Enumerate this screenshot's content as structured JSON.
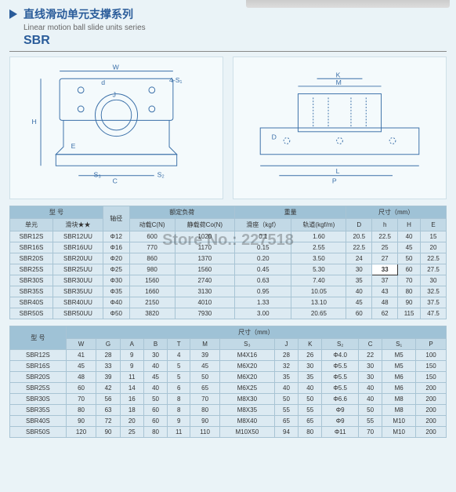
{
  "title_cn": "直线滑动单元支撑系列",
  "title_en": "Linear motion ball slide units series",
  "series": "SBR",
  "watermark": "Store No.: 227518",
  "table1": {
    "group1": "型 号",
    "group2": "额定负荷",
    "group3": "尺寸（mm）",
    "sub_unit": "单元",
    "sub_block": "滑块★★",
    "sub_shaft": "轴径",
    "sub_dyn": "动载C(N)",
    "sub_stat": "静载荷Co(N)",
    "sub_fric": "滑座（kgf）",
    "sub_rail": "轨道(kgf/m)",
    "h_D": "D",
    "h_h": "h",
    "h_H": "H",
    "h_E": "E",
    "rows": [
      {
        "c": [
          "SBR12S",
          "SBR12UU",
          "Φ12",
          "600",
          "1020",
          "0.1",
          "1.60",
          "20.5",
          "22.5",
          "40",
          "15"
        ]
      },
      {
        "c": [
          "SBR16S",
          "SBR16UU",
          "Φ16",
          "770",
          "1170",
          "0.15",
          "2.55",
          "22.5",
          "25",
          "45",
          "20"
        ]
      },
      {
        "c": [
          "SBR20S",
          "SBR20UU",
          "Φ20",
          "860",
          "1370",
          "0.20",
          "3.50",
          "24",
          "27",
          "50",
          "22.5"
        ]
      },
      {
        "c": [
          "SBR25S",
          "SBR25UU",
          "Φ25",
          "980",
          "1560",
          "0.45",
          "5.30",
          "30",
          "33",
          "60",
          "27.5"
        ],
        "hl": 8
      },
      {
        "c": [
          "SBR30S",
          "SBR30UU",
          "Φ30",
          "1560",
          "2740",
          "0.63",
          "7.40",
          "35",
          "37",
          "70",
          "30"
        ]
      },
      {
        "c": [
          "SBR35S",
          "SBR35UU",
          "Φ35",
          "1660",
          "3130",
          "0.95",
          "10.05",
          "40",
          "43",
          "80",
          "32.5"
        ]
      },
      {
        "c": [
          "SBR40S",
          "SBR40UU",
          "Φ40",
          "2150",
          "4010",
          "1.33",
          "13.10",
          "45",
          "48",
          "90",
          "37.5"
        ]
      },
      {
        "c": [
          "SBR50S",
          "SBR50UU",
          "Φ50",
          "3820",
          "7930",
          "3.00",
          "20.65",
          "60",
          "62",
          "115",
          "47.5"
        ]
      }
    ]
  },
  "table2": {
    "group1": "型 号",
    "group2": "尺寸（mm）",
    "h": [
      "W",
      "G",
      "A",
      "B",
      "T",
      "M",
      "S₃",
      "J",
      "K",
      "S₂",
      "C",
      "S₁",
      "P"
    ],
    "rows": [
      {
        "c": [
          "SBR12S",
          "41",
          "28",
          "9",
          "30",
          "4",
          "39",
          "M4X16",
          "28",
          "26",
          "Φ4.0",
          "22",
          "M5",
          "100"
        ]
      },
      {
        "c": [
          "SBR16S",
          "45",
          "33",
          "9",
          "40",
          "5",
          "45",
          "M6X20",
          "32",
          "30",
          "Φ5.5",
          "30",
          "M5",
          "150"
        ]
      },
      {
        "c": [
          "SBR20S",
          "48",
          "39",
          "11",
          "45",
          "5",
          "50",
          "M6X20",
          "35",
          "35",
          "Φ5.5",
          "30",
          "M6",
          "150"
        ]
      },
      {
        "c": [
          "SBR25S",
          "60",
          "42",
          "14",
          "40",
          "6",
          "65",
          "M6X25",
          "40",
          "40",
          "Φ5.5",
          "40",
          "M6",
          "200"
        ]
      },
      {
        "c": [
          "SBR30S",
          "70",
          "56",
          "16",
          "50",
          "8",
          "70",
          "M8X30",
          "50",
          "50",
          "Φ6.6",
          "40",
          "M8",
          "200"
        ]
      },
      {
        "c": [
          "SBR35S",
          "80",
          "63",
          "18",
          "60",
          "8",
          "80",
          "M8X35",
          "55",
          "55",
          "Φ9",
          "50",
          "M8",
          "200"
        ]
      },
      {
        "c": [
          "SBR40S",
          "90",
          "72",
          "20",
          "60",
          "9",
          "90",
          "M8X40",
          "65",
          "65",
          "Φ9",
          "55",
          "M10",
          "200"
        ]
      },
      {
        "c": [
          "SBR50S",
          "120",
          "90",
          "25",
          "80",
          "11",
          "110",
          "M10X50",
          "94",
          "80",
          "Φ11",
          "70",
          "M10",
          "200"
        ]
      }
    ]
  },
  "diag_labels": {
    "W": "W",
    "H": "H",
    "C": "C",
    "M": "M",
    "K": "K",
    "L": "L",
    "P": "P",
    "d": "d",
    "S2": "S₂",
    "S3": "S₃",
    "J": "J",
    "E": "E",
    "Sx": "4-S₁",
    "D": "D"
  }
}
